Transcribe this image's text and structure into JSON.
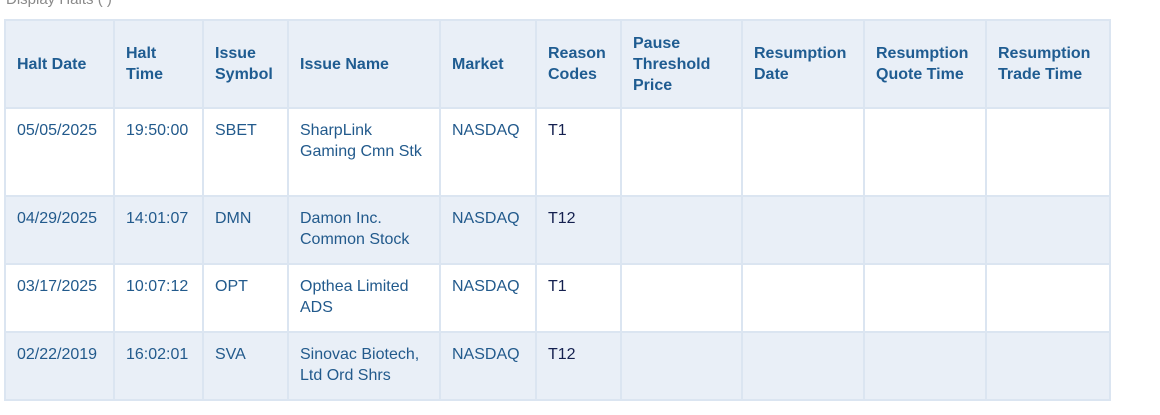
{
  "top_note": "Display         Halts         ( )",
  "table": {
    "headers": [
      "Halt Date",
      "Halt Time",
      "Issue Symbol",
      "Issue Name",
      "Market",
      "Reason Codes",
      "Pause Threshold Price",
      "Resumption Date",
      "Resumption Quote Time",
      "Resumption Trade Time"
    ],
    "rows": [
      [
        "05/05/2025",
        "19:50:00",
        "SBET",
        "SharpLink Gaming Cmn Stk",
        "NASDAQ",
        "T1",
        "",
        "",
        "",
        ""
      ],
      [
        "04/29/2025",
        "14:01:07",
        "DMN",
        "Damon Inc. Common Stock",
        "NASDAQ",
        "T12",
        "",
        "",
        "",
        ""
      ],
      [
        "03/17/2025",
        "10:07:12",
        "OPT",
        "Opthea Limited ADS",
        "NASDAQ",
        "T1",
        "",
        "",
        "",
        ""
      ],
      [
        "02/22/2019",
        "16:02:01",
        "SVA",
        "Sinovac Biotech, Ltd Ord Shrs",
        "NASDAQ",
        "T12",
        "",
        "",
        "",
        ""
      ]
    ]
  },
  "colors": {
    "header_bg": "#e9eff7",
    "header_text": "#1f5c91",
    "cell_text": "#225a8c",
    "border": "#dbe5f1",
    "reason_text": "#14204f"
  }
}
